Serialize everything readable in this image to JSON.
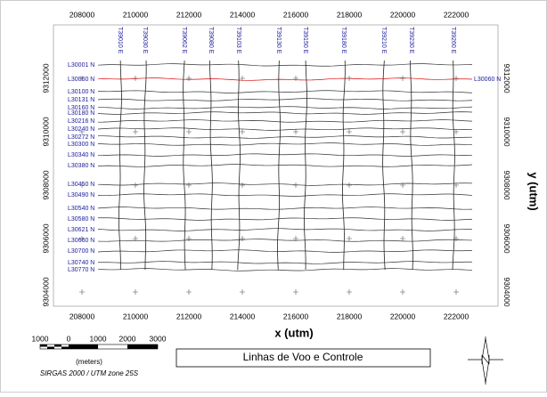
{
  "map": {
    "title": "Linhas de Voo e Controle",
    "x_axis_label": "x (utm)",
    "y_axis_label": "y (utm)",
    "x_ticks": [
      208000,
      210000,
      212000,
      214000,
      216000,
      218000,
      220000,
      222000
    ],
    "y_ticks": [
      9312000,
      9310000,
      9308000,
      9306000,
      9304000
    ],
    "flight_lines": [
      {
        "label": "L30001 N"
      },
      {
        "label": "L30060 N",
        "color": "#e00000"
      },
      {
        "label": "L30100 N"
      },
      {
        "label": "L30131 N"
      },
      {
        "label": "L30160 N"
      },
      {
        "label": "L30180 N"
      },
      {
        "label": "L30216 N"
      },
      {
        "label": "L30240 N"
      },
      {
        "label": "L30272 N"
      },
      {
        "label": "L30300 N"
      },
      {
        "label": "L30340 N"
      },
      {
        "label": "L30380 N"
      },
      {
        "label": "L30450 N"
      },
      {
        "label": "L30490 N"
      },
      {
        "label": "L30540 N"
      },
      {
        "label": "L30580 N"
      },
      {
        "label": "L30621 N"
      },
      {
        "label": "L30660 N"
      },
      {
        "label": "L30700 N"
      },
      {
        "label": "L30740 N"
      },
      {
        "label": "L30770 N"
      }
    ],
    "tie_lines": [
      {
        "label": "T39010 E"
      },
      {
        "label": "T39030 E"
      },
      {
        "label": "T39062 E"
      },
      {
        "label": "T39080 E"
      },
      {
        "label": "T39103 E"
      },
      {
        "label": "T39130 E"
      },
      {
        "label": "T39150 E"
      },
      {
        "label": "T39180 E"
      },
      {
        "label": "T39210 E"
      },
      {
        "label": "T39230 E"
      },
      {
        "label": "T39260 E"
      }
    ],
    "scale_bar": {
      "labels": [
        "1000",
        "0",
        "1000",
        "2000",
        "3000"
      ],
      "unit": "(meters)",
      "projection": "SIRGAS 2000 / UTM zone 25S"
    }
  }
}
